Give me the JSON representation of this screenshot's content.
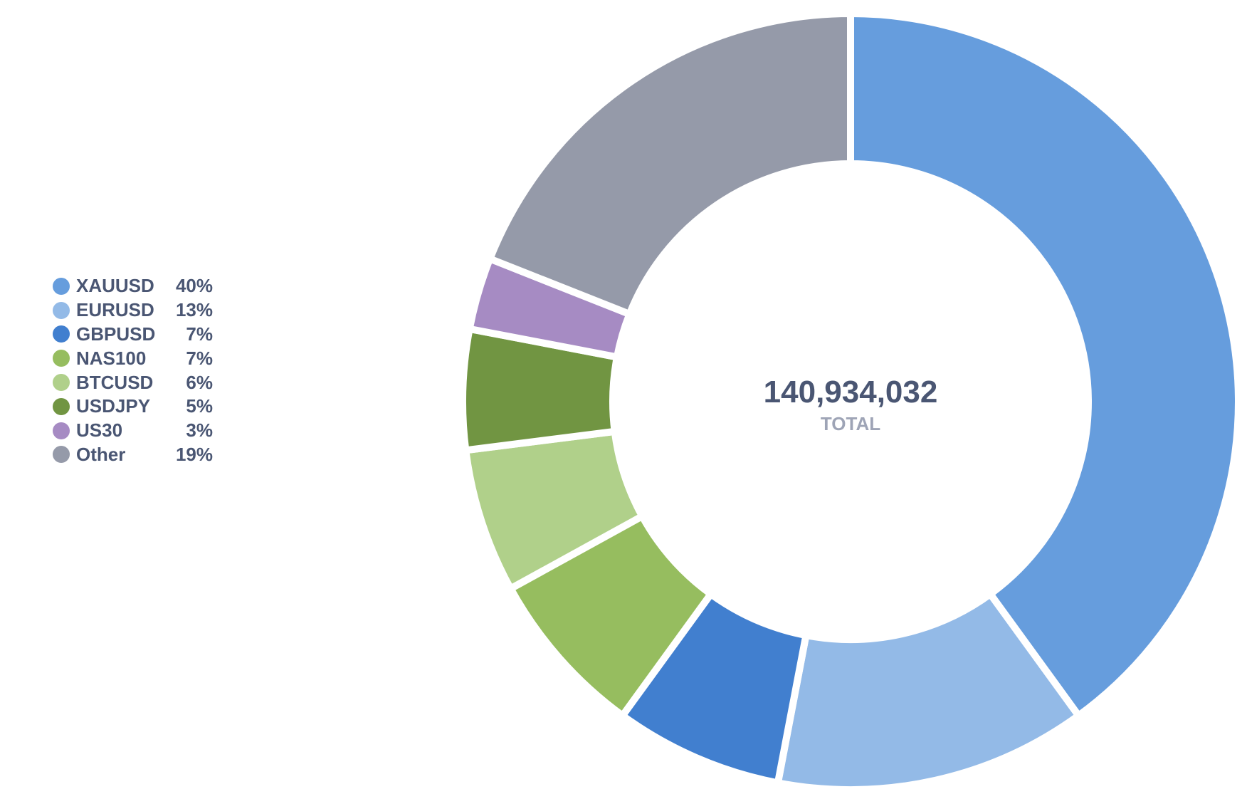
{
  "chart_data": {
    "type": "pie",
    "variant": "donut",
    "legend_position": "left",
    "center": {
      "value": "140,934,032",
      "label": "TOTAL"
    },
    "slices": [
      {
        "name": "XAUUSD",
        "value": 40,
        "value_label": "40%",
        "color": "#669ddd"
      },
      {
        "name": "EURUSD",
        "value": 13,
        "value_label": "13%",
        "color": "#93bae7"
      },
      {
        "name": "GBPUSD",
        "value": 7,
        "value_label": "7%",
        "color": "#417fcf"
      },
      {
        "name": "NAS100",
        "value": 7,
        "value_label": "7%",
        "color": "#96bd5f"
      },
      {
        "name": "BTCUSD",
        "value": 6,
        "value_label": "6%",
        "color": "#b0d08a"
      },
      {
        "name": "USDJPY",
        "value": 5,
        "value_label": "5%",
        "color": "#719542"
      },
      {
        "name": "US30",
        "value": 3,
        "value_label": "3%",
        "color": "#a68bc3"
      },
      {
        "name": "Other",
        "value": 19,
        "value_label": "19%",
        "color": "#959aa9"
      }
    ]
  }
}
